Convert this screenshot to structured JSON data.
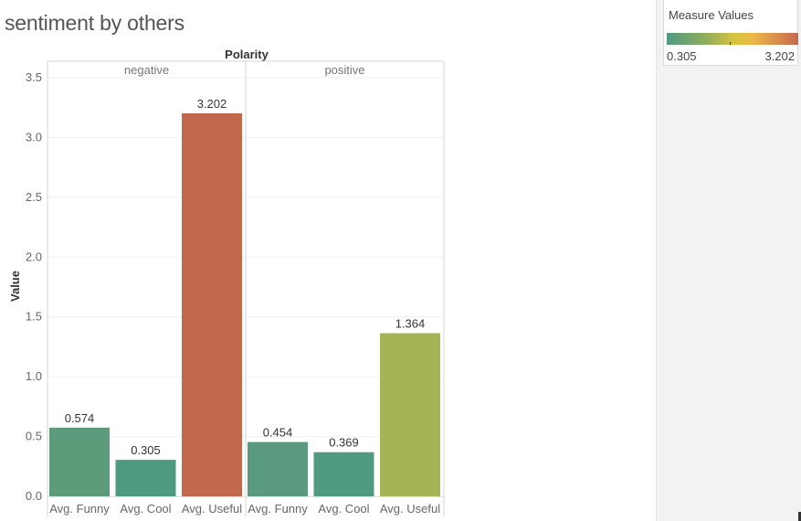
{
  "page": {
    "title": "sentiment by others"
  },
  "legend": {
    "title": "Measure Values",
    "min_label": "0.305",
    "max_label": "3.202"
  },
  "chart_data": {
    "type": "bar",
    "title": "",
    "column_header": "Polarity",
    "ylabel": "Value",
    "xlabel": "",
    "ylim": [
      0,
      3.5
    ],
    "yticks": [
      0.0,
      0.5,
      1.0,
      1.5,
      2.0,
      2.5,
      3.0,
      3.5
    ],
    "ytick_labels": [
      "0.0",
      "0.5",
      "1.0",
      "1.5",
      "2.0",
      "2.5",
      "3.0",
      "3.5"
    ],
    "grid": true,
    "color_scale": {
      "min": 0.305,
      "max": 3.202,
      "colors": [
        "#4e9a80",
        "#d8c43e",
        "#c2694d"
      ]
    },
    "panels": [
      {
        "name": "negative",
        "categories": [
          "Avg. Funny",
          "Avg. Cool",
          "Avg. Useful"
        ],
        "values": [
          0.574,
          0.305,
          3.202
        ],
        "labels": [
          "0.574",
          "0.305",
          "3.202"
        ],
        "colors": [
          "#5c9c7a",
          "#4e9a80",
          "#c2694d"
        ]
      },
      {
        "name": "positive",
        "categories": [
          "Avg. Funny",
          "Avg. Cool",
          "Avg. Useful"
        ],
        "values": [
          0.454,
          0.369,
          1.364
        ],
        "labels": [
          "0.454",
          "0.369",
          "1.364"
        ],
        "colors": [
          "#5a9a7e",
          "#4f9a80",
          "#a5b555"
        ]
      }
    ]
  }
}
